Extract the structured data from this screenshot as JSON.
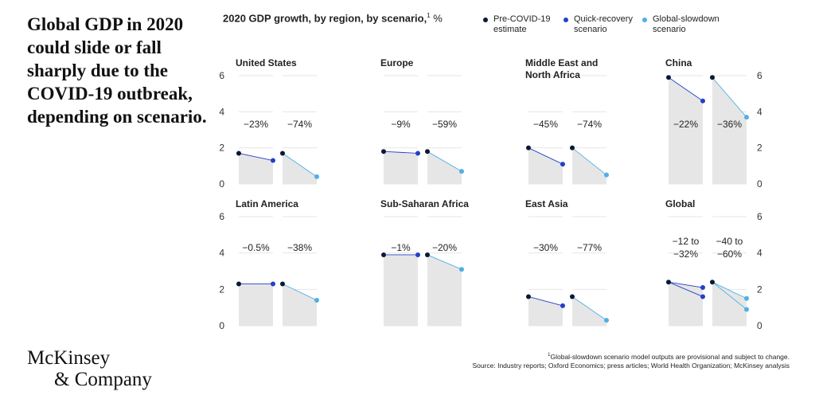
{
  "headline": "Global GDP in 2020 could slide or fall sharply due to the COVID-19 outbreak, depending on scenario.",
  "chart_title": "2020 GDP growth, by region, by scenario,",
  "chart_title_note": "1",
  "chart_title_unit": " %",
  "legend": [
    {
      "label": "Pre-COVID-19 estimate",
      "color": "#0b1a33"
    },
    {
      "label": "Quick-recovery scenario",
      "color": "#2340c8"
    },
    {
      "label": "Global-slowdown scenario",
      "color": "#4fb0e6"
    }
  ],
  "colors": {
    "pre": "#0b1a33",
    "quick": "#2340c8",
    "slow": "#4fb0e6",
    "fill": "#e6e6e6",
    "grid": "#e6e6e6"
  },
  "footnote_mark": "1",
  "footnote": "Global-slowdown scenario model outputs are provisional and subject to change.",
  "source": "Source: Industry reports; Oxford Economics; press articles; World Health Organization; McKinsey analysis",
  "logo": {
    "line1": "McKinsey",
    "line2": "& Company"
  },
  "chart_data": {
    "type": "line",
    "ylim": [
      0,
      6
    ],
    "yticks": [
      0,
      2,
      4,
      6
    ],
    "panels": [
      {
        "title": "United States",
        "quick_change": "−23%",
        "slow_change": "−74%",
        "pre": 1.7,
        "quick": 1.3,
        "slow": 0.4
      },
      {
        "title": "Europe",
        "quick_change": "−9%",
        "slow_change": "−59%",
        "pre": 1.8,
        "quick": 1.7,
        "slow": 0.7
      },
      {
        "title": "Middle East and North Africa",
        "quick_change": "−45%",
        "slow_change": "−74%",
        "pre": 2.0,
        "quick": 1.1,
        "slow": 0.5
      },
      {
        "title": "China",
        "quick_change": "−22%",
        "slow_change": "−36%",
        "pre": 5.9,
        "quick": 4.6,
        "slow": 3.7
      },
      {
        "title": "Latin America",
        "quick_change": "−0.5%",
        "slow_change": "−38%",
        "pre": 2.3,
        "quick": 2.3,
        "slow": 1.4
      },
      {
        "title": "Sub-Saharan Africa",
        "quick_change": "−1%",
        "slow_change": "−20%",
        "pre": 3.9,
        "quick": 3.9,
        "slow": 3.1
      },
      {
        "title": "East Asia",
        "quick_change": "−30%",
        "slow_change": "−77%",
        "pre": 1.6,
        "quick": 1.1,
        "slow": 0.3
      },
      {
        "title": "Global",
        "quick_change": "−12 to −32%",
        "slow_change": "−40 to −60%",
        "pre": 2.4,
        "quick": [
          2.1,
          1.6
        ],
        "slow": [
          1.5,
          0.9
        ]
      }
    ]
  }
}
